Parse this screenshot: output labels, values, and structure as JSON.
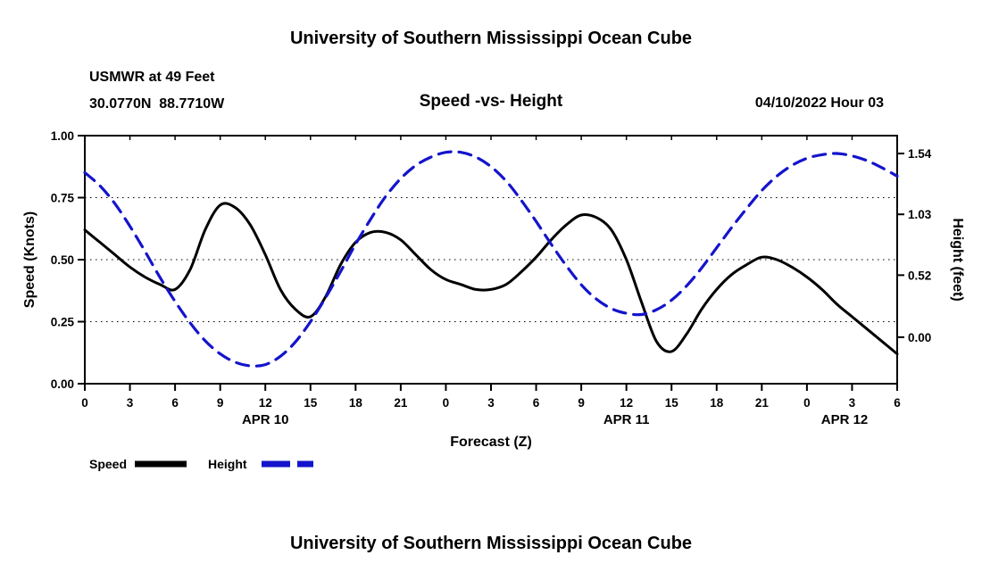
{
  "header": {
    "title": "University of Southern Mississippi Ocean Cube",
    "station": "USMWR at 49 Feet",
    "coordinates": "30.0770N  88.7710W",
    "datetime": "04/10/2022 Hour 03"
  },
  "chart_data": {
    "type": "line",
    "title": "Speed -vs- Height",
    "xlabel": "Forecast (Z)",
    "ylabel_left": "Speed (Knots)",
    "ylabel_right": "Height (feet)",
    "x_tick_interval": 3,
    "x_end": 54,
    "x_hours": [
      0,
      1,
      2,
      3,
      4,
      5,
      6,
      7,
      8,
      9,
      10,
      11,
      12,
      13,
      14,
      15,
      16,
      17,
      18,
      19,
      20,
      21,
      22,
      23,
      24,
      25,
      26,
      27,
      28,
      29,
      30,
      31,
      32,
      33,
      34,
      35,
      36,
      37,
      38,
      39,
      40,
      41,
      42,
      43,
      44,
      45,
      46,
      47,
      48,
      49,
      50,
      51,
      52,
      53,
      54
    ],
    "date_labels": [
      {
        "label": "APR 10",
        "hour": 12
      },
      {
        "label": "APR 11",
        "hour": 36
      },
      {
        "label": "APR 12",
        "hour": 50.5
      }
    ],
    "left_axis": {
      "min": 0.0,
      "max": 1.0,
      "ticks": [
        0.0,
        0.25,
        0.5,
        0.75,
        1.0
      ]
    },
    "right_axis": {
      "min": -0.39,
      "max": 1.69,
      "ticks": [
        0.0,
        0.52,
        1.03,
        1.54
      ]
    },
    "grid": "dotted-horizontal",
    "legend_position": "bottom-left",
    "series": [
      {
        "name": "Speed",
        "axis": "left",
        "color": "#000000",
        "width": 3,
        "dash": null,
        "values": [
          0.62,
          0.57,
          0.52,
          0.47,
          0.43,
          0.4,
          0.38,
          0.46,
          0.62,
          0.72,
          0.71,
          0.64,
          0.52,
          0.38,
          0.3,
          0.27,
          0.35,
          0.48,
          0.57,
          0.61,
          0.61,
          0.58,
          0.52,
          0.46,
          0.42,
          0.4,
          0.38,
          0.38,
          0.4,
          0.45,
          0.51,
          0.58,
          0.64,
          0.68,
          0.67,
          0.62,
          0.5,
          0.33,
          0.17,
          0.13,
          0.2,
          0.3,
          0.38,
          0.44,
          0.48,
          0.51,
          0.5,
          0.47,
          0.43,
          0.38,
          0.32,
          0.27,
          0.22,
          0.17,
          0.12
        ]
      },
      {
        "name": "Height",
        "axis": "right",
        "color": "#1414cc",
        "width": 3.2,
        "dash": "14 9",
        "values": [
          1.38,
          1.27,
          1.12,
          0.93,
          0.72,
          0.5,
          0.3,
          0.12,
          -0.03,
          -0.14,
          -0.21,
          -0.24,
          -0.23,
          -0.16,
          -0.04,
          0.13,
          0.33,
          0.55,
          0.78,
          0.99,
          1.18,
          1.33,
          1.44,
          1.51,
          1.55,
          1.55,
          1.51,
          1.43,
          1.31,
          1.15,
          0.97,
          0.78,
          0.6,
          0.44,
          0.32,
          0.24,
          0.2,
          0.19,
          0.23,
          0.31,
          0.43,
          0.58,
          0.75,
          0.92,
          1.08,
          1.23,
          1.35,
          1.44,
          1.5,
          1.53,
          1.54,
          1.52,
          1.48,
          1.42,
          1.35
        ]
      }
    ]
  }
}
